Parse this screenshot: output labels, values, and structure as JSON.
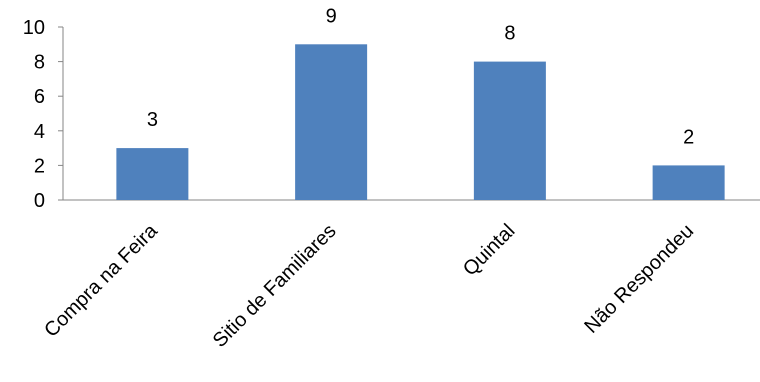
{
  "chart_data": {
    "type": "bar",
    "title": "",
    "xlabel": "",
    "ylabel": "",
    "categories": [
      "Compra na Feira",
      "Sitio  de Familiares",
      "Quintal",
      "Não Respondeu"
    ],
    "values": [
      3,
      9,
      8,
      2
    ],
    "ylim": [
      0,
      10
    ],
    "yticks": [
      0,
      2,
      4,
      6,
      8,
      10
    ],
    "data_labels": true,
    "grid": false,
    "legend": "none",
    "bar_color": "#4F81BD"
  }
}
